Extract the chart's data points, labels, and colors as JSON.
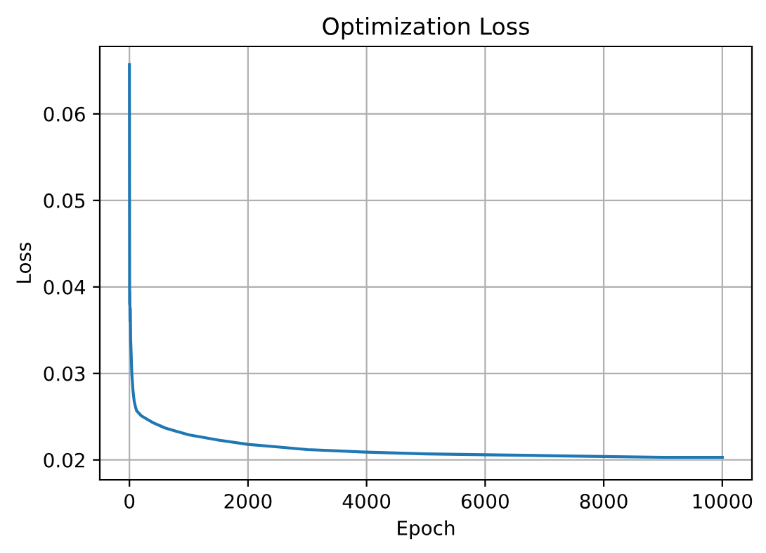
{
  "chart_data": {
    "type": "line",
    "title": "Optimization Loss",
    "xlabel": "Epoch",
    "ylabel": "Loss",
    "x": [
      0,
      3,
      6,
      10,
      15,
      20,
      30,
      40,
      60,
      80,
      100,
      120,
      160,
      200,
      300,
      400,
      600,
      800,
      1000,
      1500,
      2000,
      2500,
      3000,
      4000,
      5000,
      6000,
      7000,
      8000,
      9000,
      10000
    ],
    "series": [
      {
        "color": "#1f77b4",
        "values": [
          0.0657,
          0.038,
          0.0395,
          0.036,
          0.0375,
          0.034,
          0.032,
          0.03,
          0.028,
          0.0268,
          0.0262,
          0.0257,
          0.0254,
          0.0251,
          0.0247,
          0.0243,
          0.0237,
          0.0233,
          0.0229,
          0.0223,
          0.0218,
          0.0215,
          0.0212,
          0.0209,
          0.0207,
          0.0206,
          0.0205,
          0.0204,
          0.0203,
          0.0203
        ]
      }
    ],
    "xlim": [
      -500,
      10500
    ],
    "ylim": [
      0.0177,
      0.0678
    ],
    "xticks": [
      0,
      2000,
      4000,
      6000,
      8000,
      10000
    ],
    "yticks": [
      {
        "value": 0.02,
        "label": "0.02"
      },
      {
        "value": 0.03,
        "label": "0.03"
      },
      {
        "value": 0.04,
        "label": "0.04"
      },
      {
        "value": 0.05,
        "label": "0.05"
      },
      {
        "value": 0.06,
        "label": "0.06"
      }
    ],
    "grid": true,
    "legend": false
  }
}
